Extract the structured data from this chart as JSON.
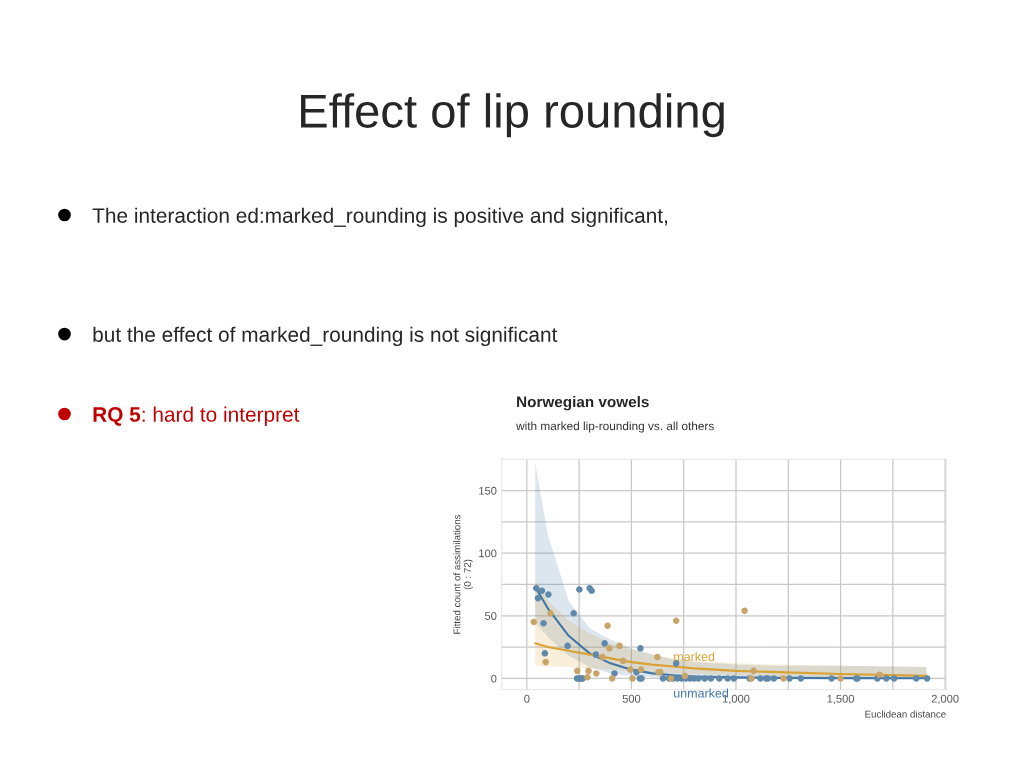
{
  "chart_data": {
    "type": "scatter",
    "title": "Effect of lip rounding",
    "subtitle": "Norwegian vowels",
    "annotations": [
      "with marked lip-rounding vs. all others",
      "The interaction ed:marked_rounding is positive and significant,",
      "but the effect of marked_rounding is not significant",
      "RQ 5",
      ": hard to interpret"
    ],
    "xlabel": "Euclidean distance",
    "ylabel": "Fitted count of assimilations\n(0 : 72)",
    "xlim": [
      -120,
      2005
    ],
    "ylim": [
      -9,
      175
    ],
    "xticks": [
      0,
      {
        "value": 250,
        "label": null
      },
      500,
      {
        "value": 750,
        "label": null
      },
      {
        "value": 1000,
        "label": "1,000"
      },
      {
        "value": 1250,
        "label": null
      },
      {
        "value": 1500,
        "label": "1,500"
      },
      {
        "value": 1750,
        "label": null
      },
      {
        "value": 2000,
        "label": "2,000"
      }
    ],
    "yticks": [
      0,
      {
        "value": 25,
        "label": null
      },
      50,
      {
        "value": 75,
        "label": null
      },
      100,
      {
        "value": 125,
        "label": null
      },
      150
    ],
    "grid": true,
    "legend": false,
    "series": [
      {
        "type": "line",
        "name": "unmarked",
        "color": "#3f76a6",
        "x": [
          40,
          100,
          200,
          300,
          400,
          500,
          600,
          700,
          800,
          1000,
          1200,
          1500,
          1910
        ],
        "values": [
          73,
          56,
          34,
          20,
          12,
          7,
          4,
          2.5,
          1.5,
          0.8,
          0.4,
          0.2,
          0.1
        ],
        "lower": [
          45,
          33,
          18,
          9,
          4,
          2,
          1,
          0.5,
          0.3,
          0.1,
          0,
          0,
          0
        ],
        "upper": [
          172,
          115,
          62,
          40,
          31,
          24,
          19,
          15,
          13,
          11,
          10,
          10,
          9
        ]
      },
      {
        "type": "line",
        "name": "marked",
        "color": "#d9a233",
        "x": [
          40,
          100,
          200,
          300,
          400,
          500,
          600,
          700,
          800,
          1000,
          1200,
          1500,
          1910
        ],
        "values": [
          28,
          25,
          22,
          19,
          16,
          13,
          11,
          9.5,
          8,
          6,
          5,
          3.5,
          2
        ],
        "lower": [
          10,
          9.5,
          9,
          8,
          7,
          6,
          5,
          4,
          3.5,
          2.5,
          2,
          1,
          0.5
        ],
        "upper": [
          78,
          62,
          46,
          36,
          28,
          23,
          19,
          16,
          14,
          12,
          11,
          10,
          9
        ]
      },
      {
        "marker": "circle",
        "color": "#5f88aa",
        "x": [
          45,
          53,
          72,
          80,
          86,
          103,
          195,
          224,
          251,
          300,
          310,
          330,
          372,
          419,
          543,
          524,
          714,
          240,
          250,
          255,
          262,
          267,
          540,
          548,
          651,
          680,
          700,
          720,
          740,
          760,
          780,
          800,
          820,
          850,
          880,
          920,
          960,
          990,
          1065,
          1117,
          1144,
          1153,
          1181,
          1256,
          1310,
          1457,
          1575,
          1581,
          1676,
          1719,
          1756,
          1862,
          1914
        ],
        "values": [
          72,
          64,
          70,
          44,
          20,
          67,
          26,
          52,
          71,
          72,
          70,
          19,
          28,
          4,
          24,
          5,
          12,
          0,
          0,
          0,
          0,
          0,
          0,
          0,
          0,
          0,
          0,
          0,
          0,
          0,
          0,
          0,
          0,
          0,
          0,
          0,
          0,
          0,
          0,
          0,
          0,
          0,
          0,
          0,
          0,
          0,
          0,
          0,
          0,
          0,
          0,
          0,
          0
        ]
      },
      {
        "marker": "circle",
        "color": "#c9a56a",
        "x": [
          33,
          90,
          113,
          241,
          290,
          295,
          332,
          386,
          395,
          362,
          408,
          443,
          460,
          495,
          505,
          546,
          624,
          629,
          638,
          689,
          714,
          756,
          1041,
          1084,
          1227,
          1500,
          1686,
          1074
        ],
        "values": [
          45,
          13,
          52,
          6,
          1,
          6,
          4,
          42,
          24,
          17,
          0,
          26,
          14,
          7,
          0,
          7,
          17,
          5,
          5,
          0,
          46,
          2,
          54,
          6,
          0,
          0,
          3,
          0
        ]
      }
    ]
  }
}
